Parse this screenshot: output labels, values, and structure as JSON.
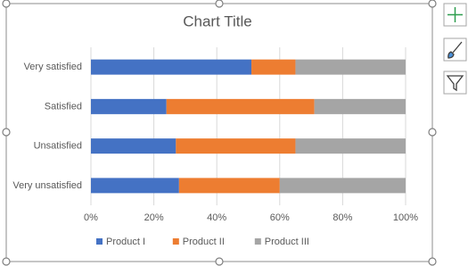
{
  "chart_data": {
    "type": "bar",
    "orientation": "horizontal",
    "stacked": true,
    "title": "Chart Title",
    "categories": [
      "Very satisfied",
      "Satisfied",
      "Unsatisfied",
      "Very unsatisfied"
    ],
    "series": [
      {
        "name": "Product I",
        "color": "#4472c4",
        "values": [
          51,
          24,
          27,
          28
        ]
      },
      {
        "name": "Product II",
        "color": "#ed7d31",
        "values": [
          14,
          47,
          38,
          32
        ]
      },
      {
        "name": "Product III",
        "color": "#a5a5a5",
        "values": [
          35,
          29,
          35,
          40
        ]
      }
    ],
    "xlim": [
      0,
      100
    ],
    "xticks": [
      {
        "value": 0,
        "label": "0%"
      },
      {
        "value": 20,
        "label": "20%"
      },
      {
        "value": 40,
        "label": "40%"
      },
      {
        "value": 60,
        "label": "60%"
      },
      {
        "value": 80,
        "label": "80%"
      },
      {
        "value": 100,
        "label": "100%"
      }
    ],
    "grid": true,
    "legend": "bottom"
  }
}
